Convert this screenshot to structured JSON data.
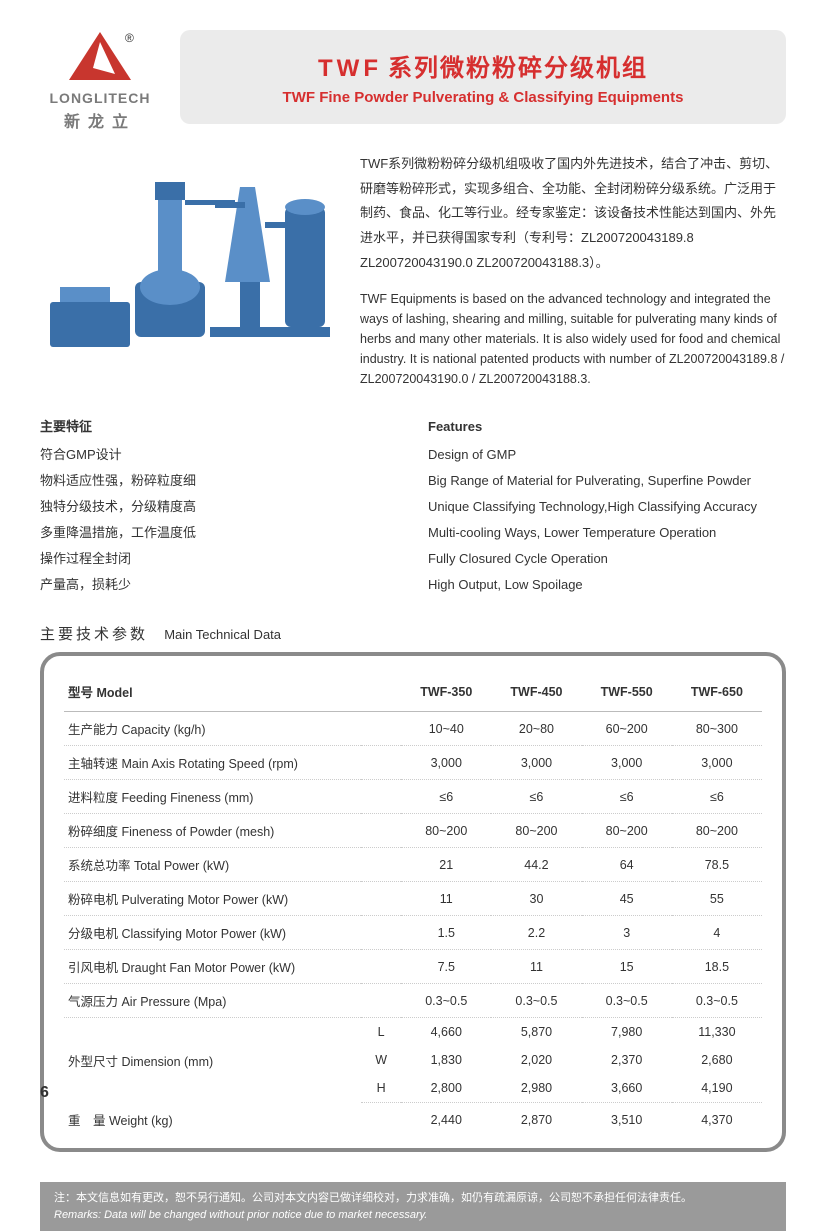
{
  "logo": {
    "brand_en": "LONGLITECH",
    "brand_cn": "新龙立",
    "triangle_color": "#c8362e",
    "reg_mark": "®"
  },
  "title": {
    "prefix": "TWF",
    "cn": "系列微粉粉碎分级机组",
    "en": "TWF Fine Powder Pulverating & Classifying Equipments",
    "bg": "#ebebeb",
    "color": "#d62f2f"
  },
  "intro": {
    "cn": "TWF系列微粉粉碎分级机组吸收了国内外先进技术，结合了冲击、剪切、研磨等粉碎形式，实现多组合、全功能、全封闭粉碎分级系统。广泛用于制药、食品、化工等行业。经专家鉴定：该设备技术性能达到国内、外先进水平，并已获得国家专利（专利号：ZL200720043189.8  ZL200720043190.0  ZL200720043188.3）。",
    "en": "TWF Equipments is based on the advanced technology and integrated the ways of lashing, shearing and milling, suitable for pulverating many kinds of herbs and many other materials. It is also widely used for food and chemical industry. It is national patented products with number of ZL200720043189.8 / ZL200720043190.0 / ZL200720043188.3."
  },
  "features": {
    "cn_header": "主要特征",
    "en_header": "Features",
    "cn": [
      "符合GMP设计",
      "物料适应性强，粉碎粒度细",
      "独特分级技术，分级精度高",
      "多重降温措施，工作温度低",
      "操作过程全封闭",
      "产量高，损耗少"
    ],
    "en": [
      "Design of GMP",
      "Big Range of Material for Pulverating, Superfine Powder",
      "Unique Classifying Technology,High Classifying Accuracy",
      "Multi-cooling Ways, Lower Temperature Operation",
      "Fully Closured Cycle Operation",
      "High Output, Low Spoilage"
    ]
  },
  "tech_section": {
    "cn": "主要技术参数",
    "en": "Main Technical Data"
  },
  "table": {
    "border_color": "#8a8a8a",
    "header_model": "型号 Model",
    "models": [
      "TWF-350",
      "TWF-450",
      "TWF-550",
      "TWF-650"
    ],
    "rows": [
      {
        "label": "生产能力 Capacity (kg/h)",
        "vals": [
          "10~40",
          "20~80",
          "60~200",
          "80~300"
        ]
      },
      {
        "label": "主轴转速 Main Axis Rotating Speed (rpm)",
        "vals": [
          "3,000",
          "3,000",
          "3,000",
          "3,000"
        ]
      },
      {
        "label": "进料粒度 Feeding Fineness (mm)",
        "vals": [
          "≤6",
          "≤6",
          "≤6",
          "≤6"
        ]
      },
      {
        "label": "粉碎细度 Fineness of Powder (mesh)",
        "vals": [
          "80~200",
          "80~200",
          "80~200",
          "80~200"
        ]
      },
      {
        "label": "系统总功率 Total Power (kW)",
        "vals": [
          "21",
          "44.2",
          "64",
          "78.5"
        ]
      },
      {
        "label": "粉碎电机 Pulverating Motor Power (kW)",
        "vals": [
          "11",
          "30",
          "45",
          "55"
        ]
      },
      {
        "label": "分级电机 Classifying Motor Power (kW)",
        "vals": [
          "1.5",
          "2.2",
          "3",
          "4"
        ]
      },
      {
        "label": "引风电机 Draught Fan Motor Power (kW)",
        "vals": [
          "7.5",
          "11",
          "15",
          "18.5"
        ]
      },
      {
        "label": "气源压力 Air Pressure (Mpa)",
        "vals": [
          "0.3~0.5",
          "0.3~0.5",
          "0.3~0.5",
          "0.3~0.5"
        ]
      }
    ],
    "dim_label": "外型尺寸 Dimension (mm)",
    "dim_rows": [
      {
        "sub": "L",
        "vals": [
          "4,660",
          "5,870",
          "7,980",
          "11,330"
        ]
      },
      {
        "sub": "W",
        "vals": [
          "1,830",
          "2,020",
          "2,370",
          "2,680"
        ]
      },
      {
        "sub": "H",
        "vals": [
          "2,800",
          "2,980",
          "3,660",
          "4,190"
        ]
      }
    ],
    "weight": {
      "label": "重　量 Weight (kg)",
      "vals": [
        "2,440",
        "2,870",
        "3,510",
        "4,370"
      ]
    }
  },
  "footer": {
    "cn": "注：本文信息如有更改，恕不另行通知。公司对本文内容已做详细校对，力求准确，如仍有疏漏原谅，公司恕不承担任何法律责任。",
    "en": "Remarks: Data will be changed without prior notice due to market necessary."
  },
  "page_number": "6",
  "colors": {
    "text": "#333333",
    "machine_blue": "#3a6fa8",
    "footer_bg": "#9a9a9a"
  }
}
